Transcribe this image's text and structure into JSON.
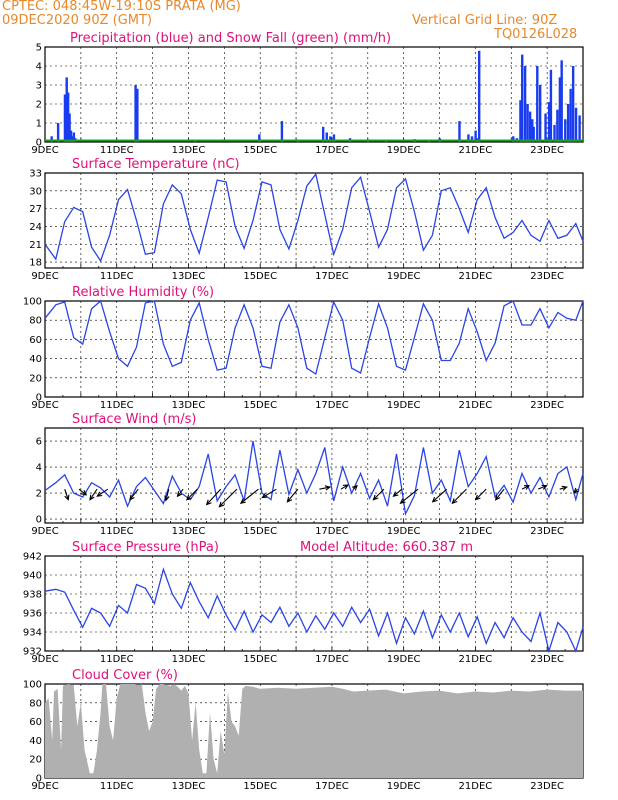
{
  "header": {
    "line1": "CPTEC:   048:45W-19:10S   PRATA (MG)",
    "line2": "09DEC2020 90Z (GMT)",
    "grid_note": "Vertical Grid Line: 90Z",
    "code": "TQ0126L028"
  },
  "colors": {
    "header": "#e8882c",
    "title": "#e0107a",
    "precip": "#1a3cf0",
    "snow": "#18a020",
    "line": "#2a44e6",
    "cloud": "#b0b0b0",
    "wind_arrow": "#000000"
  },
  "x_tick_labels": [
    "9DEC",
    "11DEC",
    "13DEC",
    "15DEC",
    "17DEC",
    "19DEC",
    "21DEC",
    "23DEC"
  ],
  "x_tick_days": [
    0,
    2,
    4,
    6,
    8,
    10,
    12,
    14
  ],
  "x_range_days": [
    0,
    15
  ],
  "chart_data": [
    {
      "type": "bar",
      "id": "precip",
      "title": "Precipitation (blue) and Snow Fall (green) (mm/h)",
      "ylim": [
        0,
        5
      ],
      "yticks": [
        0,
        1,
        2,
        3,
        4,
        5
      ],
      "x_days": [
        0.18,
        0.36,
        0.55,
        0.6,
        0.64,
        0.68,
        0.72,
        0.76,
        0.8,
        0.84,
        2.52,
        2.57,
        4.18,
        5.97,
        6.6,
        7.05,
        7.75,
        7.85,
        7.95,
        8.05,
        8.5,
        9.0,
        9.5,
        10.3,
        10.7,
        11.0,
        11.55,
        11.8,
        11.9,
        12.0,
        12.05,
        12.1,
        13.05,
        13.15,
        13.25,
        13.3,
        13.38,
        13.45,
        13.52,
        13.58,
        13.62,
        13.72,
        13.8,
        13.95,
        14.05,
        14.1,
        14.2,
        14.28,
        14.35,
        14.4,
        14.5,
        14.58,
        14.65,
        14.72,
        14.8,
        14.9
      ],
      "values": [
        0.3,
        1.0,
        2.5,
        3.4,
        2.6,
        1.5,
        0.6,
        0.3,
        0.5,
        0.2,
        3.0,
        2.8,
        0.1,
        0.4,
        1.1,
        0.1,
        0.8,
        0.5,
        0.3,
        0.4,
        0.2,
        0.1,
        0.1,
        0.15,
        0.1,
        0.2,
        1.1,
        0.4,
        0.3,
        0.6,
        0.2,
        4.8,
        0.3,
        0.2,
        2.2,
        4.6,
        4.0,
        2.0,
        1.6,
        1.2,
        0.8,
        4.0,
        3.0,
        1.5,
        2.1,
        3.8,
        0.9,
        1.7,
        3.4,
        4.3,
        1.2,
        2.0,
        2.8,
        4.0,
        1.8,
        1.4
      ]
    },
    {
      "type": "line",
      "id": "temperature",
      "title": "Surface Temperature (nC)",
      "ylim": [
        17,
        33
      ],
      "yticks": [
        18,
        21,
        24,
        27,
        30,
        33
      ],
      "x_days": [
        0,
        0.3,
        0.55,
        0.8,
        1.05,
        1.3,
        1.55,
        1.8,
        2.05,
        2.3,
        2.55,
        2.8,
        3.05,
        3.3,
        3.55,
        3.8,
        4.05,
        4.3,
        4.55,
        4.8,
        5.05,
        5.3,
        5.55,
        5.8,
        6.05,
        6.3,
        6.55,
        6.8,
        7.05,
        7.3,
        7.55,
        7.8,
        8.05,
        8.3,
        8.55,
        8.8,
        9.05,
        9.3,
        9.55,
        9.8,
        10.05,
        10.3,
        10.55,
        10.8,
        11.05,
        11.3,
        11.55,
        11.8,
        12.05,
        12.3,
        12.55,
        12.8,
        13.05,
        13.3,
        13.55,
        13.8,
        14.05,
        14.3,
        14.55,
        14.8,
        15.0
      ],
      "values": [
        21,
        18.5,
        24.8,
        27.2,
        26.5,
        20.5,
        18.2,
        22.5,
        28.5,
        30.2,
        25,
        19.3,
        19.6,
        27.8,
        31.0,
        29.5,
        23.5,
        19.5,
        25.5,
        31.8,
        31.5,
        24.0,
        20.3,
        25.0,
        31.5,
        31.0,
        23.5,
        20.2,
        25.0,
        30.8,
        32.8,
        26.0,
        19.3,
        23.5,
        30.5,
        32.3,
        26.5,
        20.5,
        23.5,
        30.5,
        32.0,
        26.5,
        20.0,
        22.5,
        30.0,
        30.5,
        27.0,
        23.0,
        28.5,
        30.5,
        25.5,
        22.0,
        23.0,
        25.0,
        22.5,
        21.5,
        25.0,
        22.0,
        22.5,
        24.5,
        21.5
      ]
    },
    {
      "type": "line",
      "id": "humidity",
      "title": "Relative Humidity (%)",
      "ylim": [
        0,
        100
      ],
      "yticks": [
        0,
        20,
        40,
        60,
        80,
        100
      ],
      "x_days": [
        0,
        0.3,
        0.55,
        0.8,
        1.05,
        1.3,
        1.55,
        1.8,
        2.05,
        2.3,
        2.55,
        2.8,
        3.05,
        3.3,
        3.55,
        3.8,
        4.05,
        4.3,
        4.55,
        4.8,
        5.05,
        5.3,
        5.55,
        5.8,
        6.05,
        6.3,
        6.55,
        6.8,
        7.05,
        7.3,
        7.55,
        7.8,
        8.05,
        8.3,
        8.55,
        8.8,
        9.05,
        9.3,
        9.55,
        9.8,
        10.05,
        10.3,
        10.55,
        10.8,
        11.05,
        11.3,
        11.55,
        11.8,
        12.05,
        12.3,
        12.55,
        12.8,
        13.05,
        13.3,
        13.55,
        13.8,
        14.05,
        14.3,
        14.55,
        14.8,
        15.0
      ],
      "values": [
        82,
        96,
        99,
        62,
        55,
        92,
        100,
        68,
        40,
        32,
        52,
        98,
        100,
        55,
        32,
        36,
        80,
        98,
        60,
        28,
        30,
        72,
        96,
        72,
        32,
        30,
        78,
        96,
        72,
        30,
        24,
        62,
        99,
        80,
        30,
        25,
        62,
        97,
        72,
        32,
        28,
        62,
        97,
        80,
        38,
        38,
        56,
        92,
        68,
        38,
        56,
        95,
        100,
        75,
        75,
        92,
        72,
        88,
        82,
        80,
        100
      ]
    },
    {
      "type": "line",
      "id": "wind",
      "title": "Surface Wind (m/s)",
      "ylim": [
        -0.3,
        7
      ],
      "yticks": [
        0,
        2,
        4,
        6
      ],
      "x_days": [
        0,
        0.3,
        0.55,
        0.8,
        1.05,
        1.3,
        1.55,
        1.8,
        2.05,
        2.3,
        2.55,
        2.8,
        3.05,
        3.3,
        3.55,
        3.8,
        4.05,
        4.3,
        4.55,
        4.8,
        5.05,
        5.3,
        5.55,
        5.8,
        6.05,
        6.3,
        6.55,
        6.8,
        7.05,
        7.3,
        7.55,
        7.8,
        8.05,
        8.3,
        8.55,
        8.8,
        9.05,
        9.3,
        9.55,
        9.8,
        10.05,
        10.3,
        10.55,
        10.8,
        11.05,
        11.3,
        11.55,
        11.8,
        12.05,
        12.3,
        12.55,
        12.8,
        13.05,
        13.3,
        13.55,
        13.8,
        14.05,
        14.3,
        14.55,
        14.8,
        15.0
      ],
      "values": [
        2.2,
        2.8,
        3.4,
        2.0,
        1.7,
        2.8,
        2.4,
        1.7,
        3.0,
        1.0,
        2.5,
        3.2,
        2.2,
        1.2,
        3.3,
        2.0,
        1.5,
        2.5,
        5.0,
        1.4,
        2.5,
        3.4,
        1.4,
        6.0,
        2.0,
        1.5,
        5.3,
        1.9,
        3.8,
        2.0,
        3.5,
        5.5,
        1.4,
        4.0,
        2.0,
        3.5,
        1.6,
        3.0,
        1.0,
        5.0,
        0.4,
        1.8,
        5.5,
        2.0,
        3.0,
        1.4,
        5.3,
        2.5,
        3.5,
        4.8,
        1.7,
        2.6,
        1.3,
        3.5,
        2.0,
        3.2,
        1.7,
        3.5,
        4.0,
        1.5,
        3.5
      ]
    },
    {
      "type": "line",
      "id": "pressure",
      "title": "Surface Pressure (hPa)",
      "annotation": "Model Altitude: 660.387 m",
      "ylim": [
        932,
        942
      ],
      "yticks": [
        932,
        934,
        936,
        938,
        940,
        942
      ],
      "x_days": [
        0,
        0.3,
        0.55,
        0.8,
        1.05,
        1.3,
        1.55,
        1.8,
        2.05,
        2.3,
        2.55,
        2.8,
        3.05,
        3.3,
        3.55,
        3.8,
        4.05,
        4.3,
        4.55,
        4.8,
        5.05,
        5.3,
        5.55,
        5.8,
        6.05,
        6.3,
        6.55,
        6.8,
        7.05,
        7.3,
        7.55,
        7.8,
        8.05,
        8.3,
        8.55,
        8.8,
        9.05,
        9.3,
        9.55,
        9.8,
        10.05,
        10.3,
        10.55,
        10.8,
        11.05,
        11.3,
        11.55,
        11.8,
        12.05,
        12.3,
        12.55,
        12.8,
        13.05,
        13.3,
        13.55,
        13.8,
        14.05,
        14.3,
        14.55,
        14.8,
        15.0
      ],
      "values": [
        938.3,
        938.5,
        938.2,
        936.3,
        934.5,
        936.5,
        936.0,
        934.6,
        936.8,
        936.0,
        939.0,
        938.6,
        937.0,
        940.6,
        938.0,
        936.5,
        939.2,
        937.2,
        935.5,
        937.8,
        935.8,
        934.2,
        936.2,
        934.0,
        935.8,
        935.0,
        936.6,
        934.6,
        936.0,
        934.0,
        935.7,
        934.3,
        936.0,
        934.6,
        936.6,
        935.0,
        936.4,
        933.6,
        936.0,
        932.8,
        935.5,
        933.8,
        936.2,
        933.4,
        935.8,
        934.0,
        936.0,
        933.5,
        935.6,
        932.8,
        935.0,
        933.4,
        935.5,
        934.0,
        933.0,
        936.0,
        931.9,
        935.0,
        934.0,
        931.8,
        934.5
      ]
    },
    {
      "type": "area",
      "id": "cloud",
      "title": "Cloud Cover (%)",
      "ylim": [
        0,
        100
      ],
      "yticks": [
        0,
        20,
        40,
        60,
        80,
        100
      ],
      "x_days": [
        0,
        0.1,
        0.2,
        0.25,
        0.35,
        0.45,
        0.5,
        0.55,
        0.65,
        0.8,
        0.9,
        1.0,
        1.1,
        1.25,
        1.35,
        1.45,
        1.55,
        1.6,
        1.7,
        1.8,
        1.9,
        2.0,
        2.1,
        2.25,
        2.35,
        2.5,
        2.6,
        2.7,
        2.8,
        2.9,
        3.0,
        3.1,
        3.2,
        3.3,
        3.4,
        3.5,
        3.6,
        3.7,
        3.8,
        3.9,
        4.0,
        4.1,
        4.2,
        4.3,
        4.4,
        4.5,
        4.6,
        4.7,
        4.8,
        4.9,
        5.0,
        5.1,
        5.2,
        5.3,
        5.4,
        5.5,
        5.6,
        5.8,
        6.0,
        6.5,
        7.0,
        7.5,
        8.0,
        8.3,
        8.6,
        9.0,
        9.5,
        10.0,
        10.5,
        11.0,
        11.5,
        12.0,
        12.5,
        13.0,
        13.5,
        14.0,
        14.5,
        15.0
      ],
      "values": [
        80,
        85,
        40,
        92,
        95,
        30,
        98,
        99,
        100,
        99,
        55,
        80,
        30,
        5,
        5,
        30,
        70,
        100,
        100,
        55,
        40,
        85,
        100,
        100,
        100,
        100,
        99,
        100,
        70,
        50,
        60,
        95,
        100,
        100,
        99,
        98,
        100,
        97,
        93,
        98,
        90,
        40,
        80,
        30,
        5,
        5,
        70,
        20,
        5,
        50,
        25,
        92,
        60,
        55,
        45,
        95,
        98,
        97,
        95,
        96,
        95,
        96,
        97,
        95,
        92,
        93,
        94,
        90,
        92,
        93,
        90,
        92,
        91,
        93,
        92,
        94,
        93,
        93
      ]
    }
  ],
  "wind_arrows": {
    "x_days": [
      0.55,
      0.95,
      1.45,
      1.75,
      2.6,
      3.45,
      3.85,
      4.25,
      4.9,
      5.35,
      5.95,
      6.45,
      7.05,
      7.65,
      8.25,
      8.6,
      9.45,
      9.95,
      10.4,
      11.2,
      11.75,
      12.3,
      12.8,
      13.3,
      13.75,
      14.35,
      14.85
    ],
    "u": [
      0.5,
      1.0,
      -1.0,
      -1.5,
      -1.2,
      -0.4,
      -0.8,
      -1.5,
      -2.0,
      -2.5,
      -2.5,
      -2.0,
      -1.5,
      1.5,
      1.0,
      0.5,
      -1.5,
      -1.2,
      -2.5,
      -2.0,
      -2.0,
      -1.5,
      -1.2,
      1.0,
      1.2,
      1.0,
      -0.5
    ],
    "v": [
      1.5,
      0.8,
      1.5,
      1.0,
      1.5,
      1.6,
      1.0,
      1.5,
      2.2,
      2.5,
      2.0,
      1.2,
      1.8,
      -0.3,
      -0.6,
      -0.5,
      1.5,
      1.0,
      2.0,
      1.8,
      2.0,
      1.5,
      1.5,
      -0.5,
      -0.5,
      -0.3,
      0.5
    ]
  }
}
